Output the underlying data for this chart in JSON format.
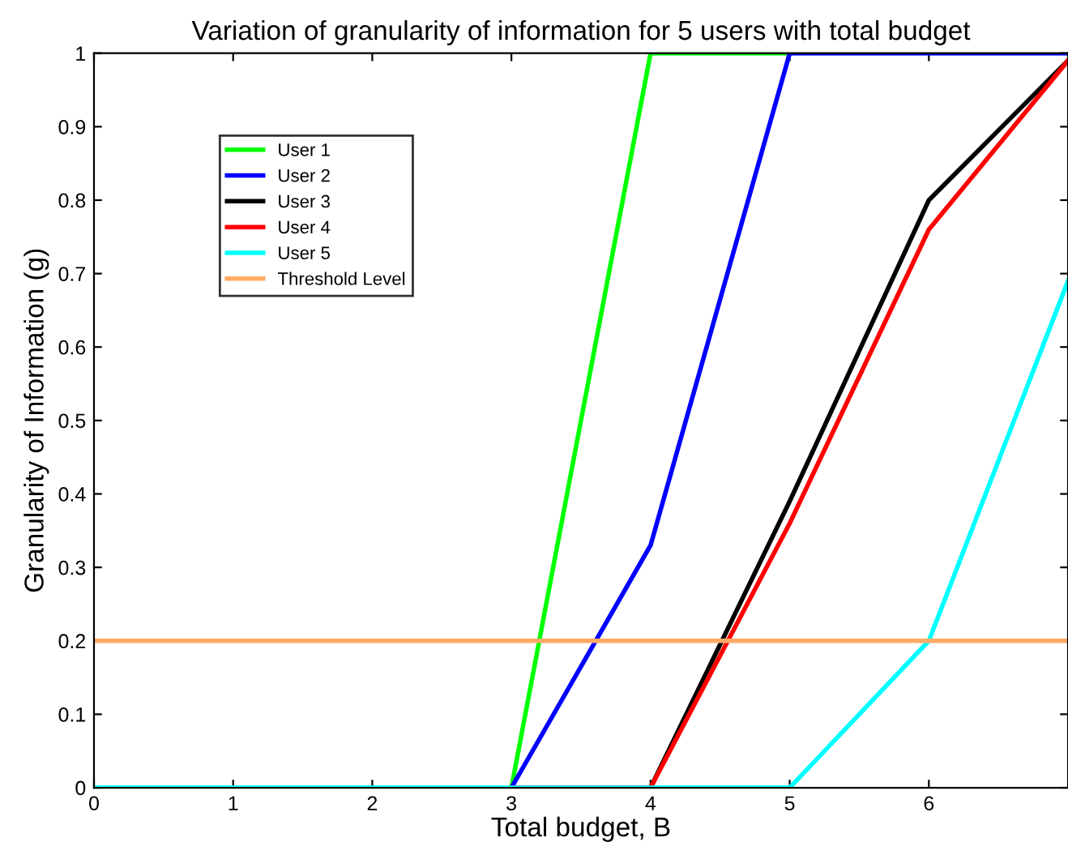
{
  "chart_data": {
    "type": "line",
    "title": "Variation of granularity of information for 5 users with total budget",
    "xlabel": "Total budget, B",
    "ylabel": "Granularity of Information (g)",
    "x": [
      0,
      1,
      2,
      3,
      4,
      5,
      6,
      7
    ],
    "series": [
      {
        "name": "User 1",
        "color": "#00ff00",
        "values": [
          null,
          null,
          null,
          0,
          1,
          1,
          null,
          null
        ]
      },
      {
        "name": "User 2",
        "color": "#0000ff",
        "values": [
          null,
          null,
          null,
          0,
          0.33,
          1,
          1,
          1
        ]
      },
      {
        "name": "User 3",
        "color": "#000000",
        "values": [
          null,
          null,
          null,
          0,
          0,
          0.39,
          0.8,
          0.99
        ]
      },
      {
        "name": "User 4",
        "color": "#ff0000",
        "values": [
          null,
          null,
          null,
          0,
          0,
          0.36,
          0.76,
          0.99
        ]
      },
      {
        "name": "User 5",
        "color": "#00ffff",
        "values": [
          0,
          0,
          0,
          0,
          0,
          0,
          0.2,
          0.69
        ]
      },
      {
        "name": "Threshold Level",
        "color": "#ffaa66",
        "values": [
          0.2,
          0.2,
          0.2,
          0.2,
          0.2,
          0.2,
          0.2,
          0.2
        ]
      }
    ],
    "xlim": [
      0,
      7
    ],
    "xticks": [
      0,
      1,
      2,
      3,
      4,
      5,
      6
    ],
    "ylim": [
      0,
      1
    ],
    "yticks": [
      0,
      0.1,
      0.2,
      0.3,
      0.4,
      0.5,
      0.6,
      0.7,
      0.8,
      0.9,
      1
    ],
    "grid": false,
    "legend": "top left",
    "marker": "none",
    "line_style": "solid"
  }
}
